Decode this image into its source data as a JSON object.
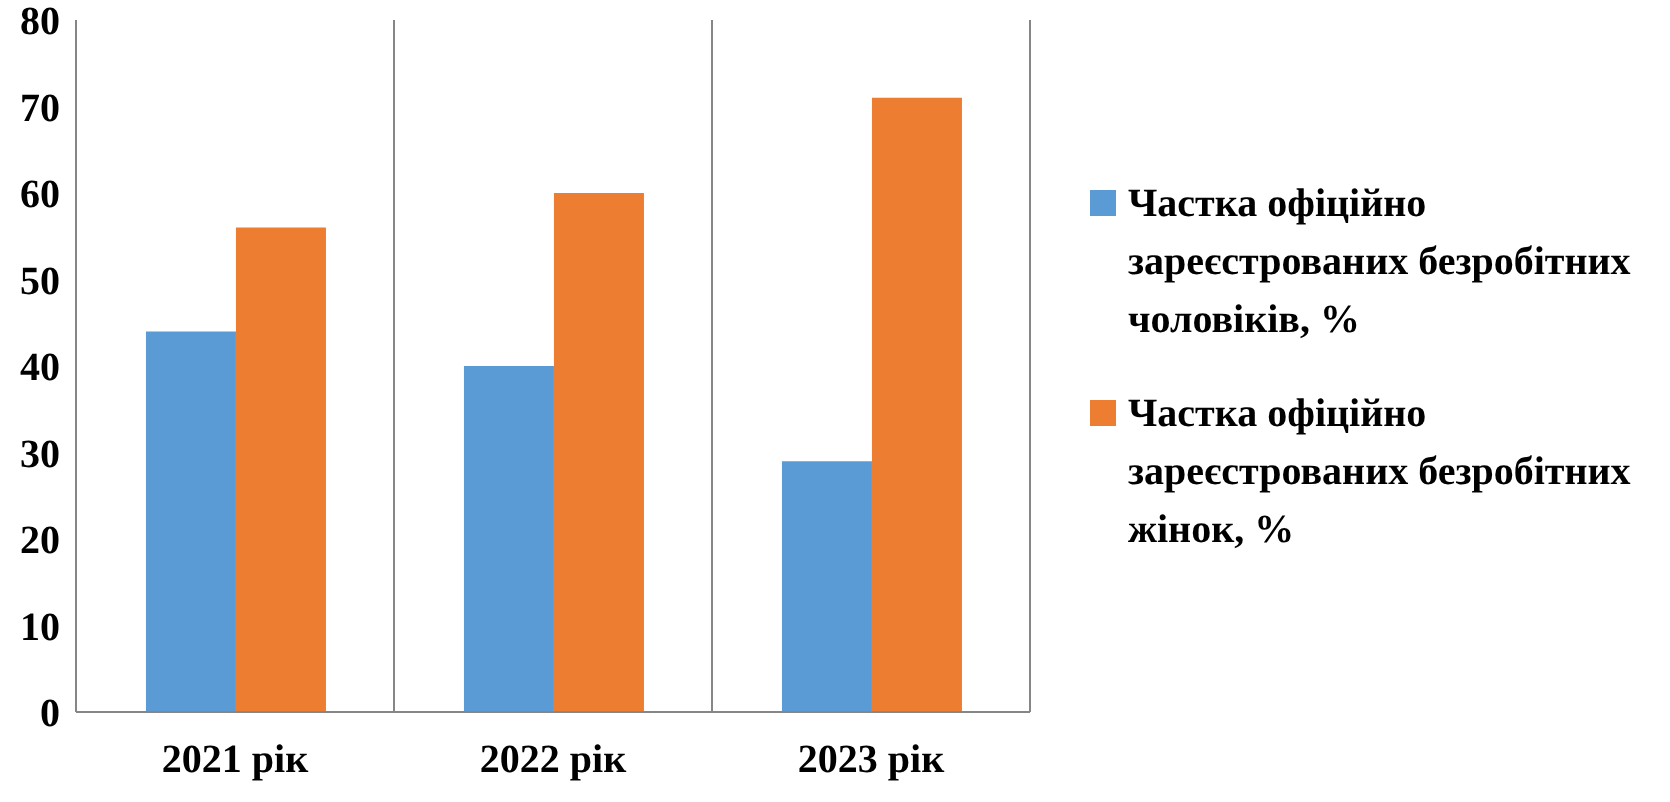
{
  "chart_data": {
    "type": "bar",
    "categories": [
      "2021 рік",
      "2022 рік",
      "2023 рік"
    ],
    "series": [
      {
        "name": "Частка офіційно зареєстрованих безробітних чоловіків, %",
        "color": "#5b9bd5",
        "values": [
          44,
          40,
          29
        ]
      },
      {
        "name": "Частка офіційно зареєстрованих безробітних жінок, %",
        "color": "#ed7d31",
        "values": [
          56,
          60,
          71
        ]
      }
    ],
    "ylim": [
      0,
      80
    ],
    "yticks": [
      0,
      10,
      20,
      30,
      40,
      50,
      60,
      70,
      80
    ],
    "grid": "x",
    "legend": "right"
  }
}
